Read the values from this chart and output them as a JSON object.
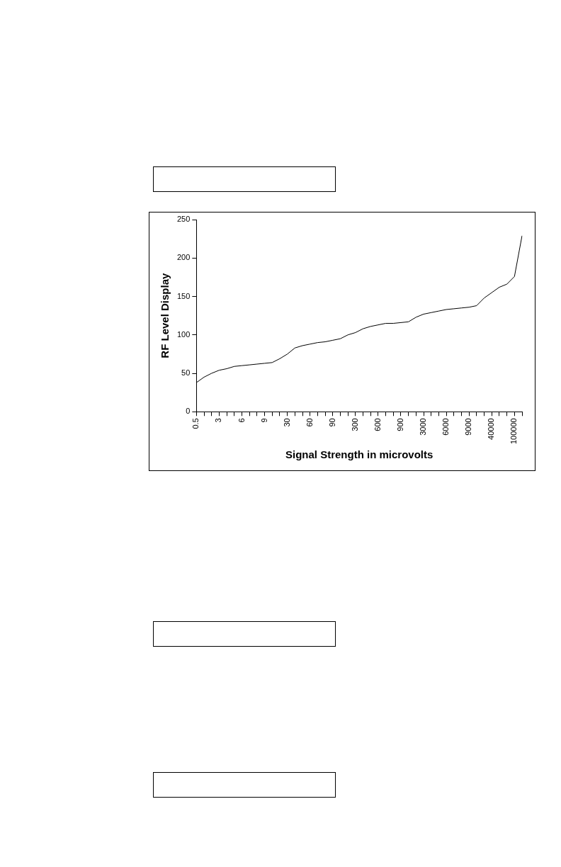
{
  "chart_data": {
    "type": "line",
    "xlabel": "Signal Strength in microvolts",
    "ylabel": "RF Level Display",
    "categories": [
      "0.5",
      null,
      null,
      "3",
      null,
      null,
      "6",
      null,
      null,
      "9",
      null,
      null,
      "30",
      null,
      null,
      "60",
      null,
      null,
      "90",
      null,
      null,
      "300",
      null,
      null,
      "600",
      null,
      null,
      "900",
      null,
      null,
      "3000",
      null,
      null,
      "6000",
      null,
      null,
      "9000",
      null,
      null,
      "40000",
      null,
      null,
      "100000",
      null
    ],
    "series": [
      {
        "color": "#000000",
        "values": [
          38,
          45,
          50,
          54,
          56,
          59,
          60,
          61,
          62,
          63,
          64,
          69,
          75,
          83,
          86,
          88,
          90,
          91,
          93,
          95,
          100,
          103,
          108,
          111,
          113,
          115,
          115,
          116,
          117,
          123,
          127,
          129,
          131,
          133,
          134,
          135,
          136,
          138,
          148,
          155,
          162,
          166,
          176,
          229
        ]
      }
    ],
    "ylim": [
      0,
      250
    ],
    "yticks": [
      0,
      50,
      100,
      150,
      200,
      250
    ],
    "grid": false,
    "legend": false,
    "marker": "none",
    "line_style": "solid"
  }
}
